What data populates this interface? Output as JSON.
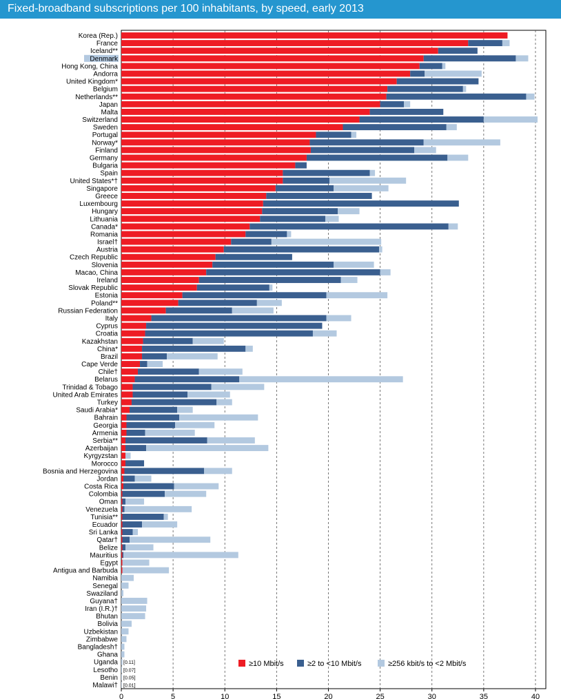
{
  "title": "Fixed-broadband subscriptions per 100 inhabitants, by speed, early 2013",
  "colors": {
    "title_bg": "#2596cf",
    "high": "#ee1c24",
    "mid": "#3a5f8f",
    "low": "#b3c9e0",
    "highlight": "#b3c9e0"
  },
  "highlighted_category": "Denmark",
  "chart_data": {
    "type": "bar",
    "orientation": "horizontal",
    "stacked": true,
    "title": "Fixed-broadband subscriptions per 100 inhabitants, by speed, early 2013",
    "xlabel": "",
    "ylabel": "",
    "xlim": [
      0,
      41
    ],
    "xticks": [
      0,
      5,
      10,
      15,
      20,
      25,
      30,
      35,
      40
    ],
    "legend_position": "bottom-right",
    "categories": [
      "Korea (Rep.)",
      "France",
      "Iceland**",
      "Denmark",
      "Hong Kong, China",
      "Andorra",
      "United Kingdom*",
      "Belgium",
      "Netherlands**",
      "Japan",
      "Malta",
      "Switzerland",
      "Sweden",
      "Portugal",
      "Norway*",
      "Finland",
      "Germany",
      "Bulgaria",
      "Spain",
      "United States*†",
      "Singapore",
      "Greece",
      "Luxembourg",
      "Hungary",
      "Lithuania",
      "Canada*",
      "Romania",
      "Israel†",
      "Austria",
      "Czech Republic",
      "Slovenia",
      "Macao, China",
      "Ireland",
      "Slovak Republic",
      "Estonia",
      "Poland**",
      "Russian Federation",
      "Italy",
      "Cyprus",
      "Croatia",
      "Kazakhstan",
      "China*",
      "Brazil",
      "Cape Verde",
      "Chile†",
      "Belarus",
      "Trinidad & Tobago",
      "United Arab Emirates",
      "Turkey",
      "Saudi Arabia*",
      "Bahrain",
      "Georgia",
      "Armenia",
      "Serbia**",
      "Azerbaijan",
      "Kyrgyzstan",
      "Morocco",
      "Bosnia and Herzegovina",
      "Jordan",
      "Costa Rica",
      "Colombia",
      "Oman",
      "Venezuela",
      "Tunisia**",
      "Ecuador",
      "Sri Lanka",
      "Qatar†",
      "Belize",
      "Mauritius",
      "Egypt",
      "Antigua and Barbuda",
      "Namibia",
      "Senegal",
      "Swaziland",
      "Guyana†",
      "Iran (I.R.)†",
      "Bhutan",
      "Bolivia",
      "Uzbekistan",
      "Zimbabwe",
      "Bangladesh†",
      "Ghana",
      "Uganda",
      "Lesotho",
      "Benin",
      "Malawi†"
    ],
    "series": [
      {
        "name": "≥10 Mbit/s",
        "values": [
          37.3,
          33.5,
          30.6,
          29.2,
          28.8,
          27.9,
          26.6,
          25.7,
          25.6,
          25.0,
          24.0,
          23.0,
          21.4,
          18.8,
          18.2,
          18.3,
          17.9,
          16.8,
          15.6,
          15.6,
          14.9,
          14.0,
          13.7,
          13.6,
          13.4,
          12.4,
          12.0,
          10.6,
          9.9,
          9.1,
          8.8,
          8.2,
          7.5,
          7.3,
          5.9,
          5.5,
          4.3,
          2.9,
          2.4,
          2.3,
          2.1,
          2.0,
          2.0,
          1.8,
          1.6,
          1.3,
          1.1,
          1.1,
          1.0,
          0.8,
          0.5,
          0.5,
          0.5,
          0.4,
          0.4,
          0.4,
          0.4,
          0.3,
          0.2,
          0.2,
          0.1,
          0.1,
          0.1,
          0.1,
          0.1,
          0.1,
          0.1,
          0.1,
          0.1,
          0.1,
          0.1,
          0,
          0,
          0,
          0,
          0,
          0,
          0,
          0,
          0,
          0,
          0,
          0,
          0,
          0,
          0
        ]
      },
      {
        "name": "≥2 to <10 Mbit/s",
        "values": [
          0,
          3.3,
          3.8,
          8.9,
          2.2,
          1.4,
          7.9,
          7.3,
          13.5,
          2.3,
          7.1,
          12.0,
          10.0,
          3.4,
          11.0,
          10.0,
          13.6,
          1.1,
          8.4,
          4.5,
          5.6,
          10.2,
          18.9,
          7.3,
          6.3,
          19.2,
          4.0,
          3.9,
          15.0,
          7.4,
          11.7,
          16.8,
          13.7,
          7.0,
          13.9,
          7.6,
          6.4,
          16.9,
          17.0,
          16.2,
          4.8,
          10.0,
          2.4,
          0.7,
          5.9,
          10.1,
          7.6,
          5.3,
          8.2,
          4.6,
          5.1,
          4.7,
          1.8,
          7.9,
          2.0,
          0,
          1.8,
          7.7,
          1.1,
          4.9,
          4.1,
          0.3,
          0.2,
          4.0,
          1.9,
          1.0,
          0.7,
          0.3,
          0.1,
          0,
          0,
          0,
          0,
          0,
          0,
          0,
          0,
          0,
          0,
          0,
          0,
          0,
          0,
          0,
          0,
          0
        ]
      },
      {
        "name": "≥256 kbit/s to <2 Mbit/s",
        "values": [
          0,
          0.7,
          0,
          1.2,
          0.3,
          5.5,
          0,
          0.3,
          0.8,
          0.6,
          0,
          5.2,
          1.0,
          0.5,
          7.4,
          2.1,
          2.0,
          0,
          0.5,
          7.4,
          5.3,
          0,
          0,
          2.1,
          1.3,
          0.9,
          0.4,
          10.6,
          0.3,
          0,
          3.9,
          1.0,
          1.6,
          0.3,
          5.9,
          2.4,
          4.0,
          2.4,
          0,
          2.3,
          3.0,
          0.7,
          4.9,
          1.5,
          4.2,
          15.8,
          5.1,
          4.1,
          1.5,
          1.5,
          7.6,
          3.8,
          4.8,
          4.6,
          11.8,
          0.5,
          0,
          2.7,
          1.6,
          4.3,
          4.0,
          1.8,
          6.5,
          0.4,
          3.4,
          0.5,
          7.8,
          2.7,
          11.1,
          2.6,
          4.5,
          1.2,
          0.7,
          0.2,
          2.5,
          2.4,
          2.3,
          1.0,
          0.7,
          0.5,
          0.3,
          0.3,
          0.11,
          0.07,
          0.05,
          0.01
        ]
      }
    ],
    "annotations": [
      {
        "category": "Uganda",
        "text": "[0.11]"
      },
      {
        "category": "Lesotho",
        "text": "[0.07]"
      },
      {
        "category": "Benin",
        "text": "[0.05]"
      },
      {
        "category": "Malawi†",
        "text": "[0.01]"
      }
    ]
  }
}
